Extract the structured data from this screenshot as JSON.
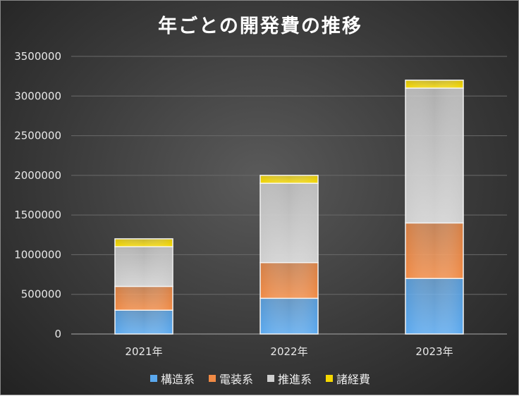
{
  "chart_data": {
    "type": "bar",
    "stacked": true,
    "title": "年ごとの開発費の推移",
    "categories": [
      "2021年",
      "2022年",
      "2023年"
    ],
    "series": [
      {
        "name": "構造系",
        "values": [
          300000,
          450000,
          700000
        ],
        "color": "#5aa8ee"
      },
      {
        "name": "電装系",
        "values": [
          300000,
          450000,
          700000
        ],
        "color": "#f08a45"
      },
      {
        "name": "推進系",
        "values": [
          500000,
          1000000,
          1700000
        ],
        "color": "#cfcfcf"
      },
      {
        "name": "諸経費",
        "values": [
          100000,
          100000,
          100000
        ],
        "color": "#f5d800"
      }
    ],
    "ylim": [
      0,
      3500000
    ],
    "yticks": [
      "0",
      "500000",
      "1000000",
      "1500000",
      "2000000",
      "2500000",
      "3000000",
      "3500000"
    ],
    "grid": true,
    "legend": "bottom",
    "xlabel": "",
    "ylabel": ""
  }
}
